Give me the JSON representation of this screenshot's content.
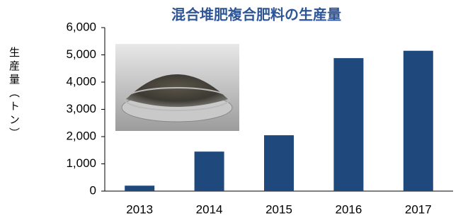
{
  "chart_data": {
    "type": "bar",
    "title": "混合堆肥複合肥料の生産量",
    "y_label": "生産量（トン）",
    "categories": [
      "2013",
      "2014",
      "2015",
      "2016",
      "2017"
    ],
    "values": [
      200,
      1450,
      2050,
      4880,
      5150
    ],
    "color": "#1f497d",
    "ylim": [
      0,
      6000
    ],
    "yticks": [
      0,
      {
        "value": 1000,
        "label": "1,000"
      },
      {
        "value": 2000,
        "label": "2,000"
      },
      {
        "value": 3000,
        "label": "3,000"
      },
      {
        "value": 4000,
        "label": "4,000"
      },
      {
        "value": 5000,
        "label": "5,000"
      },
      {
        "value": 6000,
        "label": "6,000"
      }
    ]
  }
}
